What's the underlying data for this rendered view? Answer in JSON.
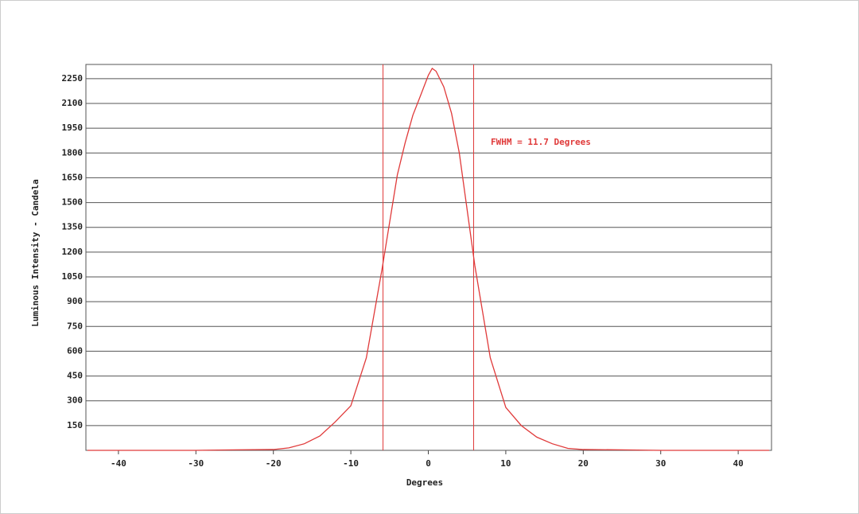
{
  "chart_data": {
    "type": "line",
    "x_label": "Degrees",
    "y_label": "Luminous Intensity - Candela",
    "annotation": "FWHM = 11.7 Degrees",
    "x": [
      -44,
      -30,
      -25,
      -20,
      -18,
      -16,
      -14,
      -12,
      -10,
      -8,
      -6,
      -4,
      -3,
      -2,
      -1,
      0,
      0.5,
      1,
      2,
      3,
      4,
      6,
      8,
      10,
      12,
      14,
      16,
      18,
      20,
      25,
      30,
      44
    ],
    "series": [
      {
        "color": "#e03a3a",
        "values": [
          0,
          0,
          3,
          5,
          15,
          40,
          87,
          173,
          270,
          560,
          1090,
          1667,
          1860,
          2028,
          2148,
          2270,
          2312,
          2295,
          2200,
          2040,
          1800,
          1120,
          560,
          260,
          150,
          80,
          40,
          12,
          5,
          3,
          0,
          0
        ]
      }
    ],
    "fwhm_lines": [
      -5.85,
      5.85
    ],
    "xlim": [
      -44.2,
      44.3
    ],
    "ylim": [
      0,
      2336
    ],
    "xticks": [
      -40,
      -30,
      -20,
      -10,
      0,
      10,
      20,
      30,
      40
    ],
    "yticks": [
      150,
      300,
      450,
      600,
      750,
      900,
      1050,
      1200,
      1350,
      1500,
      1650,
      1800,
      1950,
      2100,
      2250
    ],
    "grid": true
  }
}
